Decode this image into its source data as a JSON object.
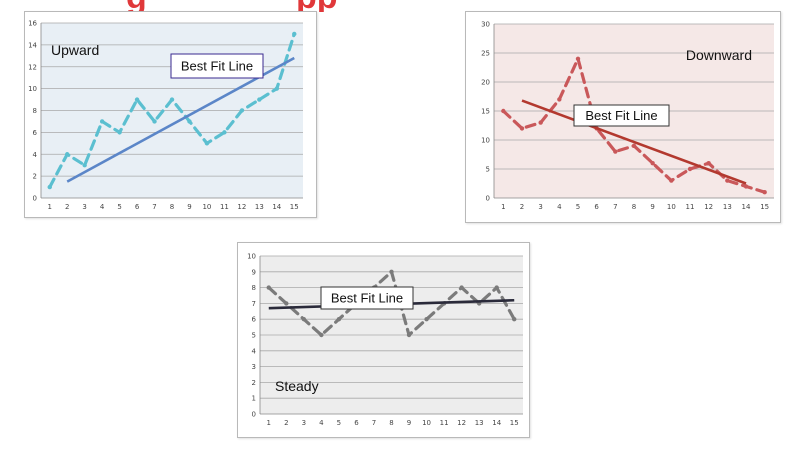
{
  "header": {
    "title_fragment": "g",
    "title_fragment_2": "pp"
  },
  "colors": {
    "header_red": "#e0383a"
  },
  "chart_data": [
    {
      "type": "line",
      "panel_label": "Upward",
      "annotation": "Best Fit Line",
      "x": [
        1,
        2,
        3,
        4,
        5,
        6,
        7,
        8,
        9,
        10,
        11,
        12,
        13,
        14,
        15
      ],
      "ylim": [
        0,
        16
      ],
      "yticks": [
        0,
        2,
        4,
        6,
        8,
        10,
        12,
        14,
        16
      ],
      "series": [
        {
          "values": [
            1,
            4,
            3,
            7,
            6,
            9,
            7,
            9,
            7,
            5,
            6,
            8,
            9,
            10,
            15
          ],
          "color": "#5bbfd0",
          "style": "dashed"
        }
      ],
      "best_fit": {
        "from": [
          2,
          1.5
        ],
        "to": [
          15,
          12.8
        ],
        "color": "#5b86c8"
      },
      "plot_bg": "#e8eff5",
      "grid": true
    },
    {
      "type": "line",
      "panel_label": "Downward",
      "annotation": "Best Fit Line",
      "x": [
        1,
        2,
        3,
        4,
        5,
        6,
        7,
        8,
        9,
        10,
        11,
        12,
        13,
        14,
        15
      ],
      "ylim": [
        0,
        30
      ],
      "yticks": [
        0,
        5,
        10,
        15,
        20,
        25,
        30
      ],
      "series": [
        {
          "values": [
            15,
            12,
            13,
            17,
            24,
            12,
            8,
            9,
            6,
            3,
            5,
            6,
            3,
            2,
            1
          ],
          "color": "#c9585a",
          "style": "dashed"
        }
      ],
      "best_fit": {
        "from": [
          2,
          16.8
        ],
        "to": [
          14,
          2.5
        ],
        "color": "#b3392f"
      },
      "plot_bg": "#f5e8e7",
      "grid": true
    },
    {
      "type": "line",
      "panel_label": "Steady",
      "annotation": "Best Fit Line",
      "x": [
        1,
        2,
        3,
        4,
        5,
        6,
        7,
        8,
        9,
        10,
        11,
        12,
        13,
        14,
        15
      ],
      "ylim": [
        0,
        10
      ],
      "yticks": [
        0,
        1,
        2,
        3,
        4,
        5,
        6,
        7,
        8,
        9,
        10
      ],
      "series": [
        {
          "values": [
            8,
            7,
            6,
            5,
            6,
            7,
            8,
            9,
            5,
            6,
            7,
            8,
            7,
            8,
            6
          ],
          "color": "#7b7b7b",
          "style": "dashed"
        }
      ],
      "best_fit": {
        "from": [
          1,
          6.7
        ],
        "to": [
          15,
          7.2
        ],
        "color": "#2a2a3a"
      },
      "plot_bg": "#ededed",
      "grid": true
    }
  ]
}
